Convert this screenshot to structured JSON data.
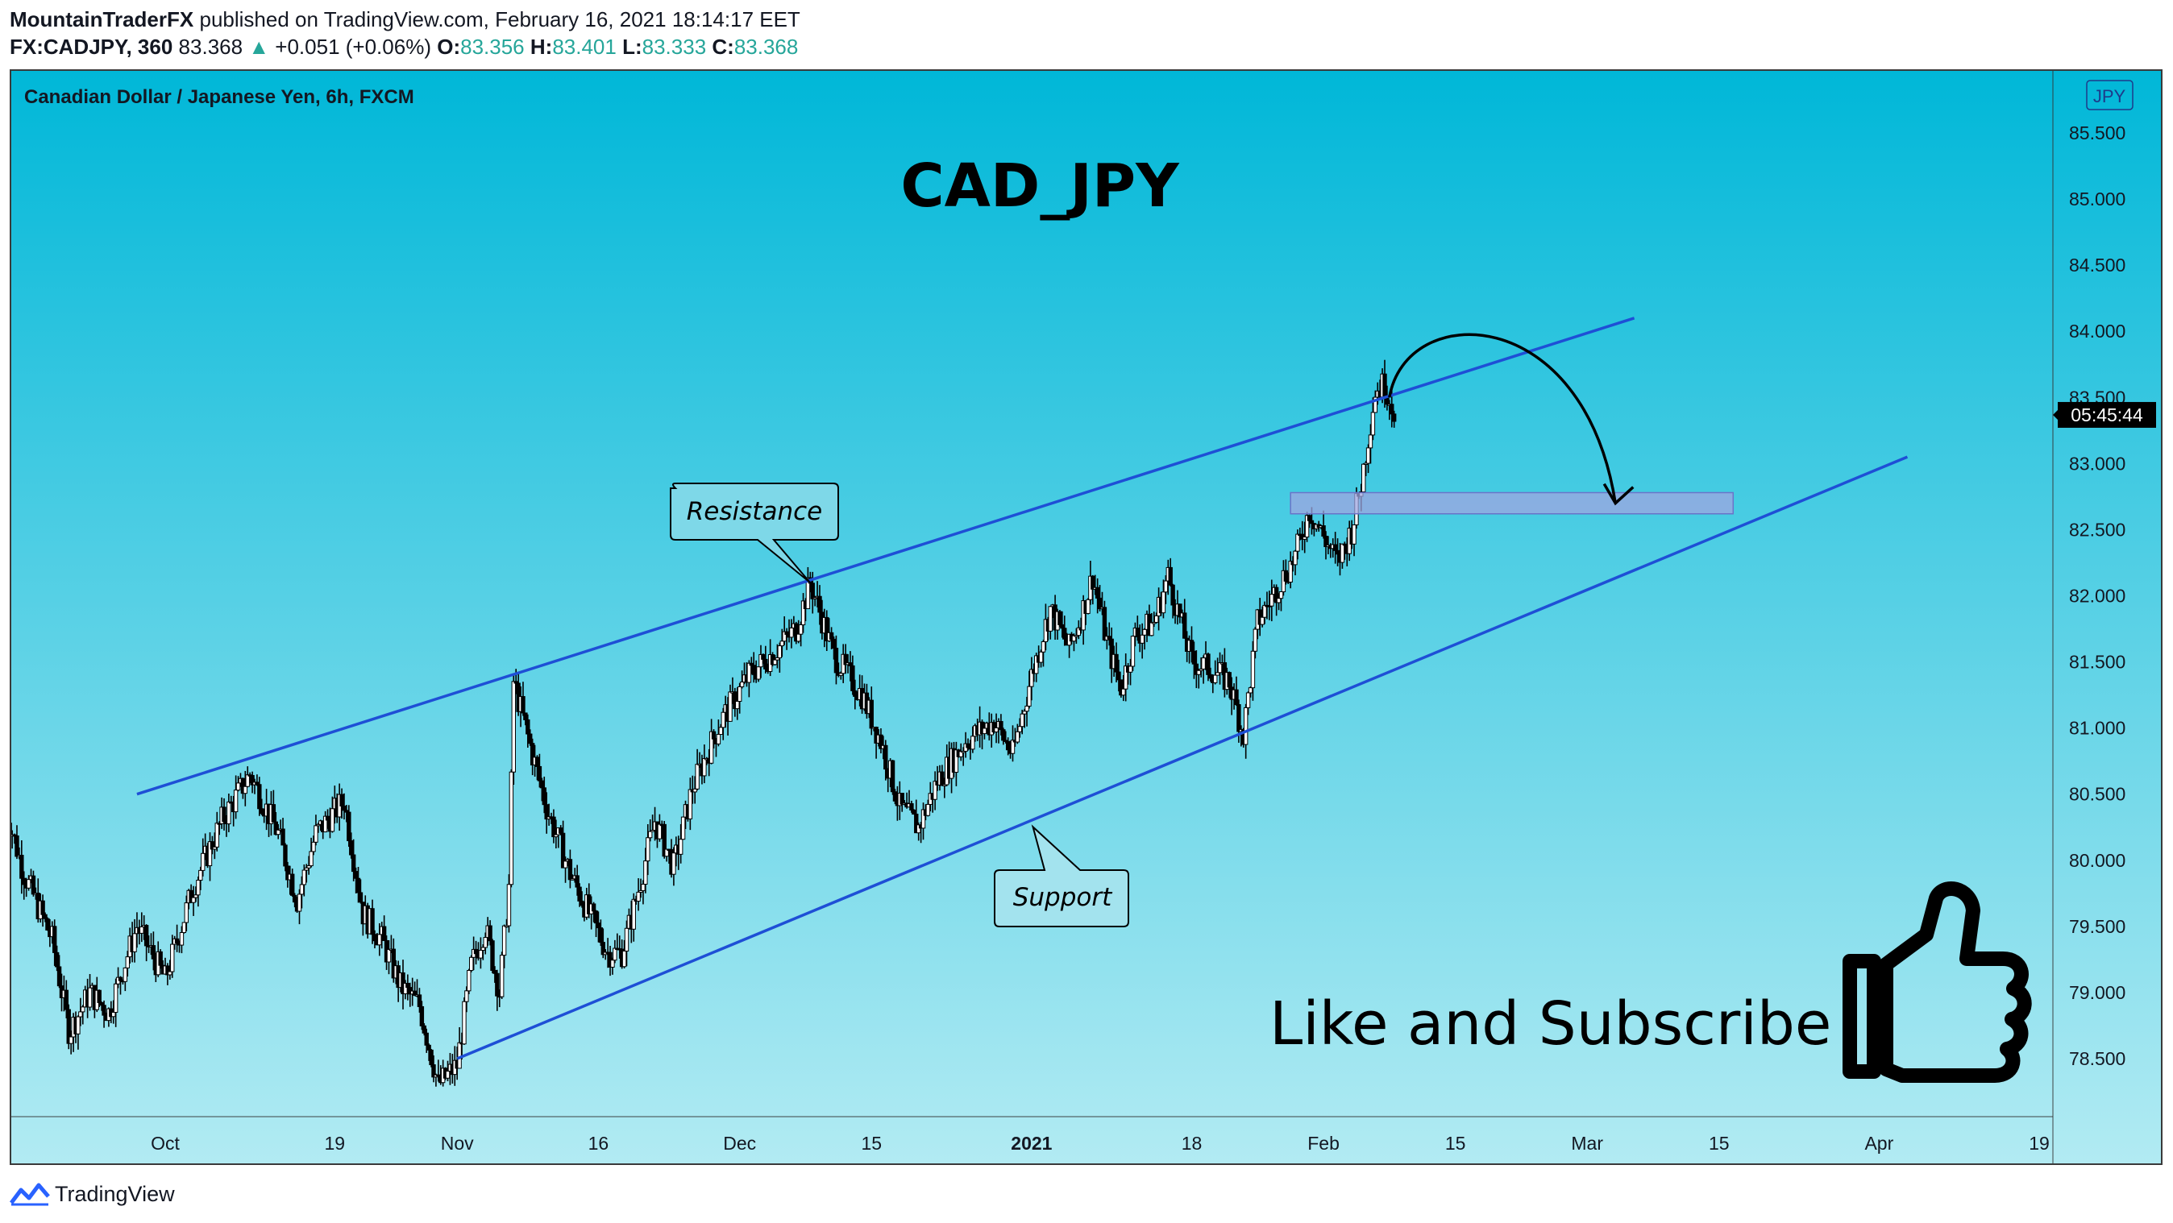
{
  "header": {
    "author": "MountainTraderFX",
    "published_text": "published on TradingView.com, February 16, 2021 18:14:17 EET",
    "symbol": "FX:CADJPY, 360",
    "last_price": "83.368",
    "change": "+0.051 (+0.06%)",
    "o_label": "O:",
    "o_value": "83.356",
    "h_label": "H:",
    "h_value": "83.401",
    "l_label": "L:",
    "l_value": "83.333",
    "c_label": "C:",
    "c_value": "83.368"
  },
  "footer": {
    "brand": "TradingView"
  },
  "colors": {
    "bg_top": "#00b7d8",
    "bg_bottom": "#b2ebf3",
    "channel": "#1e4fd6",
    "zone": "#9fa6e0",
    "candle": "#000000",
    "countdown_bg": "#000000"
  },
  "chart_data": {
    "type": "candlestick",
    "title": "Canadian Dollar / Japanese Yen, 6h, FXCM",
    "overlay_title": "CAD_JPY",
    "currency_badge": "JPY",
    "countdown": "05:45:44",
    "current_price": 83.368,
    "y_ticks": [
      "85.500",
      "85.000",
      "84.500",
      "84.000",
      "83.500",
      "83.000",
      "82.500",
      "82.000",
      "81.500",
      "81.000",
      "80.500",
      "80.000",
      "79.500",
      "79.000",
      "78.500"
    ],
    "ylim": [
      78.05,
      85.95
    ],
    "x_ticks": [
      {
        "label": "Oct",
        "day": 24,
        "bold": false
      },
      {
        "label": "19",
        "day": 42,
        "bold": false
      },
      {
        "label": "Nov",
        "day": 55,
        "bold": false
      },
      {
        "label": "16",
        "day": 70,
        "bold": false
      },
      {
        "label": "Dec",
        "day": 85,
        "bold": false
      },
      {
        "label": "15",
        "day": 99,
        "bold": false
      },
      {
        "label": "2021",
        "day": 116,
        "bold": true
      },
      {
        "label": "18",
        "day": 133,
        "bold": false
      },
      {
        "label": "Feb",
        "day": 147,
        "bold": false
      },
      {
        "label": "15",
        "day": 161,
        "bold": false
      },
      {
        "label": "Mar",
        "day": 175,
        "bold": false
      },
      {
        "label": "15",
        "day": 189,
        "bold": false
      },
      {
        "label": "Apr",
        "day": 206,
        "bold": false
      },
      {
        "label": "19",
        "day": 223,
        "bold": false
      }
    ],
    "xlim": [
      7,
      225
    ],
    "price_path": [
      [
        7,
        80.4
      ],
      [
        9,
        79.9
      ],
      [
        12,
        79.4
      ],
      [
        13.8,
        78.7
      ],
      [
        16,
        79.0
      ],
      [
        18,
        78.85
      ],
      [
        21,
        79.5
      ],
      [
        24,
        79.1
      ],
      [
        27,
        79.8
      ],
      [
        30,
        80.3
      ],
      [
        33,
        80.65
      ],
      [
        36,
        80.2
      ],
      [
        38,
        79.7
      ],
      [
        40,
        80.2
      ],
      [
        43,
        80.45
      ],
      [
        45,
        79.6
      ],
      [
        47,
        79.4
      ],
      [
        49,
        79.05
      ],
      [
        51,
        78.9
      ],
      [
        53,
        78.3
      ],
      [
        55,
        78.45
      ],
      [
        56.5,
        79.2
      ],
      [
        58,
        79.5
      ],
      [
        59.5,
        79.0
      ],
      [
        60.5,
        79.8
      ],
      [
        61,
        81.35
      ],
      [
        63,
        80.8
      ],
      [
        64.5,
        80.4
      ],
      [
        67,
        79.9
      ],
      [
        69,
        79.6
      ],
      [
        71,
        79.3
      ],
      [
        72.5,
        79.3
      ],
      [
        74,
        79.7
      ],
      [
        76,
        80.3
      ],
      [
        78,
        79.95
      ],
      [
        80,
        80.55
      ],
      [
        83,
        81.05
      ],
      [
        86,
        81.4
      ],
      [
        89,
        81.6
      ],
      [
        91,
        81.75
      ],
      [
        92.5,
        82.1
      ],
      [
        95,
        81.55
      ],
      [
        98,
        81.25
      ],
      [
        100,
        80.9
      ],
      [
        102,
        80.4
      ],
      [
        104,
        80.25
      ],
      [
        106,
        80.6
      ],
      [
        109,
        80.9
      ],
      [
        112,
        81.05
      ],
      [
        114,
        80.8
      ],
      [
        116,
        81.4
      ],
      [
        118,
        81.9
      ],
      [
        120,
        81.6
      ],
      [
        121.5,
        81.9
      ],
      [
        122.5,
        82.15
      ],
      [
        124,
        81.65
      ],
      [
        125.5,
        81.3
      ],
      [
        127,
        81.7
      ],
      [
        129,
        81.8
      ],
      [
        130.5,
        82.15
      ],
      [
        133,
        81.5
      ],
      [
        135,
        81.45
      ],
      [
        137,
        81.35
      ],
      [
        138.5,
        80.95
      ],
      [
        140,
        81.8
      ],
      [
        142,
        82.05
      ],
      [
        144,
        82.3
      ],
      [
        145.5,
        82.65
      ],
      [
        147,
        82.45
      ],
      [
        148.5,
        82.25
      ],
      [
        150,
        82.5
      ],
      [
        151,
        82.85
      ],
      [
        152.5,
        83.55
      ],
      [
        153.5,
        83.6
      ],
      [
        154.5,
        83.4
      ]
    ],
    "annotations": [
      {
        "type": "trendline",
        "role": "resistance",
        "points": [
          [
            21,
            80.5
          ],
          [
            180,
            84.1
          ]
        ]
      },
      {
        "type": "trendline",
        "role": "support",
        "points": [
          [
            55,
            78.5
          ],
          [
            209,
            83.05
          ]
        ]
      },
      {
        "type": "rectangle",
        "role": "target-zone",
        "x_range": [
          143.5,
          190.5
        ],
        "y_range": [
          82.62,
          82.78
        ]
      },
      {
        "type": "curved-arrow",
        "from": [
          154,
          83.5
        ],
        "to": [
          178,
          82.7
        ]
      },
      {
        "type": "callout",
        "text": "Resistance",
        "anchor": [
          94,
          82.15
        ]
      },
      {
        "type": "callout",
        "text": "Support",
        "anchor": [
          117,
          80.35
        ]
      },
      {
        "type": "text",
        "text": "Like and Subscribe"
      },
      {
        "type": "icon",
        "name": "thumbs-up-icon"
      }
    ]
  }
}
